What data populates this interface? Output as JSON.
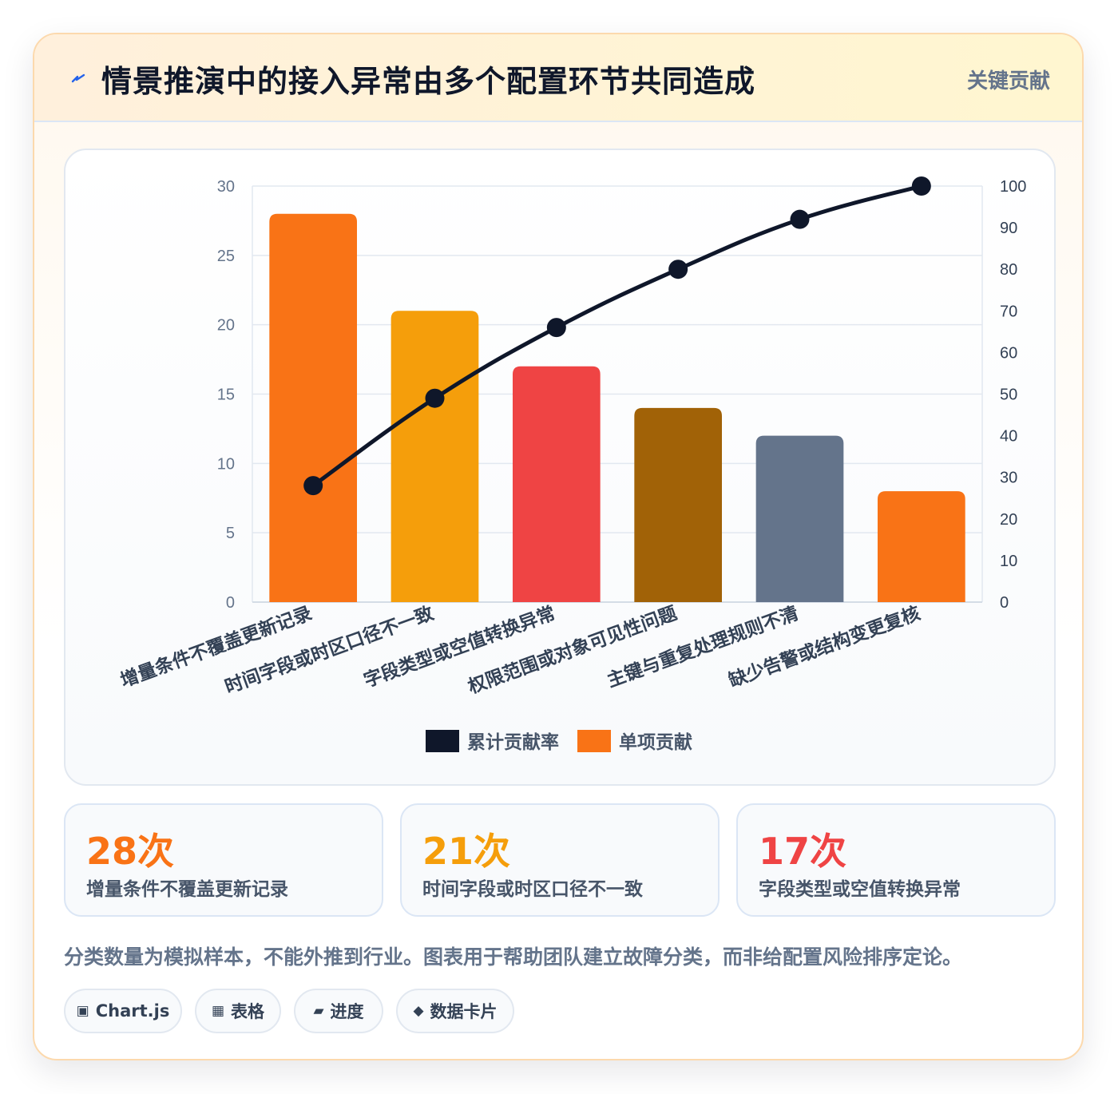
{
  "header": {
    "title": "情景推演中的接入异常由多个配置环节共同造成",
    "tag": "关键贡献",
    "icon": "lightning-icon"
  },
  "chart_data": {
    "type": "bar",
    "categories": [
      "增量条件不覆盖更新记录",
      "时间字段或时区口径不一致",
      "字段类型或空值转换异常",
      "权限范围或对象可见性问题",
      "主键与重复处理规则不清",
      "缺少告警或结构变更复核"
    ],
    "series": [
      {
        "name": "单项贡献",
        "type": "bar",
        "axis": "left",
        "values": [
          28,
          21,
          17,
          14,
          12,
          8
        ],
        "colors": [
          "#f97316",
          "#f59e0b",
          "#ef4444",
          "#a16207",
          "#64748b",
          "#f97316"
        ]
      },
      {
        "name": "累计贡献率",
        "type": "line",
        "axis": "right",
        "values": [
          28,
          49,
          66,
          80,
          92,
          100
        ],
        "color": "#0f172a"
      }
    ],
    "ylim": [
      0,
      30
    ],
    "yticks": [
      0,
      5,
      10,
      15,
      20,
      25,
      30
    ],
    "y2lim": [
      0,
      100
    ],
    "y2ticks": [
      0,
      10,
      20,
      30,
      40,
      50,
      60,
      70,
      80,
      90,
      100
    ],
    "legend": {
      "position": "bottom",
      "items": [
        {
          "name": "累计贡献率",
          "color": "#0f172a"
        },
        {
          "name": "单项贡献",
          "color": "#f97316"
        }
      ]
    },
    "grid": true
  },
  "stats": [
    {
      "value": "28次",
      "label": "增量条件不覆盖更新记录",
      "color": "#f97316"
    },
    {
      "value": "21次",
      "label": "时间字段或时区口径不一致",
      "color": "#f59e0b"
    },
    {
      "value": "17次",
      "label": "字段类型或空值转换异常",
      "color": "#ef4444"
    }
  ],
  "note": "分类数量为模拟样本，不能外推到行业。图表用于帮助团队建立故障分类，而非给配置风险排序定论。",
  "chips": [
    {
      "icon": "▣",
      "label": "Chart.js"
    },
    {
      "icon": "▦",
      "label": "表格"
    },
    {
      "icon": "▰",
      "label": "进度"
    },
    {
      "icon": "◆",
      "label": "数据卡片"
    }
  ]
}
